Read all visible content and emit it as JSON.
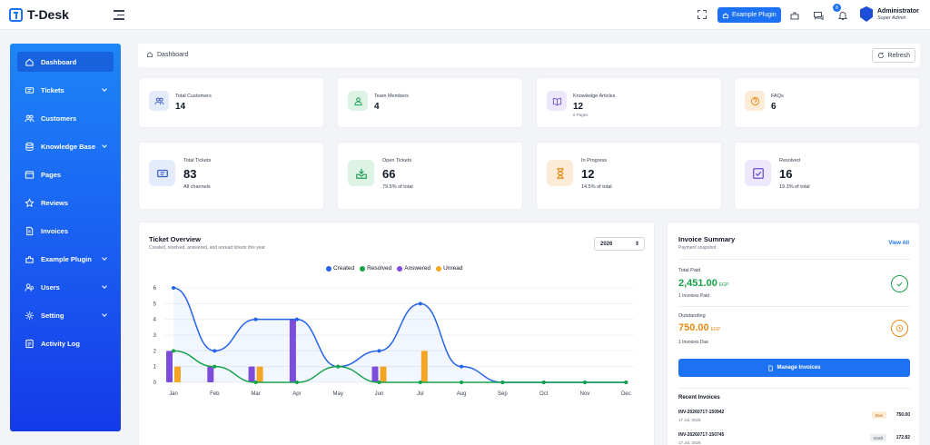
{
  "app": {
    "name": "T-Desk"
  },
  "topbar": {
    "plugin_button": "Example Plugin",
    "notification_count": "8",
    "user_name": "Administrator",
    "user_role": "Super Admin"
  },
  "sidebar": {
    "items": [
      {
        "label": "Dashboard",
        "icon": "home-icon",
        "active": true,
        "has_submenu": false
      },
      {
        "label": "Tickets",
        "icon": "ticket-icon",
        "active": false,
        "has_submenu": true
      },
      {
        "label": "Customers",
        "icon": "users-icon",
        "active": false,
        "has_submenu": false
      },
      {
        "label": "Knowledge Base",
        "icon": "database-icon",
        "active": false,
        "has_submenu": true
      },
      {
        "label": "Pages",
        "icon": "browser-icon",
        "active": false,
        "has_submenu": false
      },
      {
        "label": "Reviews",
        "icon": "star-icon",
        "active": false,
        "has_submenu": false
      },
      {
        "label": "Invoices",
        "icon": "invoice-icon",
        "active": false,
        "has_submenu": false
      },
      {
        "label": "Example Plugin",
        "icon": "plugin-icon",
        "active": false,
        "has_submenu": true
      },
      {
        "label": "Users",
        "icon": "user-group-icon",
        "active": false,
        "has_submenu": true
      },
      {
        "label": "Setting",
        "icon": "gear-icon",
        "active": false,
        "has_submenu": true
      },
      {
        "label": "Activity Log",
        "icon": "log-icon",
        "active": false,
        "has_submenu": false
      }
    ]
  },
  "breadcrumb": {
    "current": "Dashboard",
    "refresh_label": "Refresh"
  },
  "stats_top": [
    {
      "label": "Total Customers",
      "value": "14",
      "sub": "",
      "icon": "users-icon",
      "bg": "#e4ebfa",
      "fg": "#3b5ec9"
    },
    {
      "label": "Team Members",
      "value": "4",
      "sub": "",
      "icon": "user-icon",
      "bg": "#ddf3e6",
      "fg": "#1e9e57"
    },
    {
      "label": "Knowledge Articles",
      "value": "12",
      "sub": "6 Pages",
      "icon": "book-icon",
      "bg": "#ece7fa",
      "fg": "#6d4fd1"
    },
    {
      "label": "FAQs",
      "value": "6",
      "sub": "",
      "icon": "question-icon",
      "bg": "#fcecd7",
      "fg": "#e58a12"
    }
  ],
  "stats_tickets": [
    {
      "label": "Total Tickets",
      "value": "83",
      "sub": "All channels",
      "icon": "ticket-icon",
      "bg": "#e4ebfa",
      "fg": "#3b5ec9"
    },
    {
      "label": "Open Tickets",
      "value": "66",
      "sub": "79.5% of total",
      "icon": "inbox-icon",
      "bg": "#ddf3e6",
      "fg": "#1e9e57"
    },
    {
      "label": "In Progress",
      "value": "12",
      "sub": "14.5% of total",
      "icon": "hourglass-icon",
      "bg": "#fcecd7",
      "fg": "#e58a12"
    },
    {
      "label": "Resolved",
      "value": "16",
      "sub": "19.3% of total",
      "icon": "check-square-icon",
      "bg": "#ece7fa",
      "fg": "#6d4fd1"
    }
  ],
  "overview": {
    "title": "Ticket Overview",
    "subtitle": "Created, resolved, answered, and unread tickets this year",
    "year": "2026"
  },
  "chart_data": {
    "type": "line",
    "categories": [
      "Jan",
      "Feb",
      "Mar",
      "Apr",
      "May",
      "Jun",
      "Jul",
      "Aug",
      "Sep",
      "Oct",
      "Nov",
      "Dec"
    ],
    "ylim": [
      0,
      6
    ],
    "yticks": [
      0,
      1,
      2,
      3,
      4,
      5,
      6
    ],
    "grid": true,
    "legend_position": "top-center",
    "series": [
      {
        "name": "Created",
        "kind": "area-line",
        "color": "#2563eb",
        "values": [
          6,
          2,
          4,
          4,
          1,
          2,
          5,
          1,
          0,
          0,
          0,
          0
        ]
      },
      {
        "name": "Resolved",
        "kind": "line",
        "color": "#16a34a",
        "values": [
          2,
          1,
          0,
          0,
          1,
          0,
          0,
          0,
          0,
          0,
          0,
          0
        ]
      },
      {
        "name": "Answered",
        "kind": "bar",
        "color": "#7c4ddb",
        "values": [
          2,
          1,
          1,
          4,
          0,
          1,
          0,
          0,
          0,
          0,
          0,
          0
        ]
      },
      {
        "name": "Unread",
        "kind": "bar",
        "color": "#f5a524",
        "values": [
          1,
          0,
          1,
          0,
          0,
          1,
          2,
          0,
          0,
          0,
          0,
          0
        ]
      }
    ]
  },
  "invoice": {
    "title": "Invoice Summary",
    "subtitle": "Payment snapshot",
    "view_all": "View All",
    "paid_label": "Total Paid",
    "paid_amount": "2,451.00",
    "paid_currency": "EGP",
    "paid_note": "1 Invoices Paid",
    "outstanding_label": "Outstanding",
    "outstanding_amount": "750.00",
    "outstanding_currency": "EGP",
    "outstanding_note": "1 Invoices Due",
    "manage_button": "Manage Invoices",
    "recent_title": "Recent Invoices",
    "recent": [
      {
        "number": "INV-20260717-150942",
        "date": "17 Jul, 2026",
        "status": "Due",
        "total": "750.00"
      },
      {
        "number": "INV-20260717-150745",
        "date": "17 Jul, 2026",
        "status": "Draft",
        "total": "172.82"
      }
    ]
  },
  "colors": {
    "accent": "#1d72f3",
    "paid": "#16a34a",
    "outstanding": "#e58a12"
  }
}
